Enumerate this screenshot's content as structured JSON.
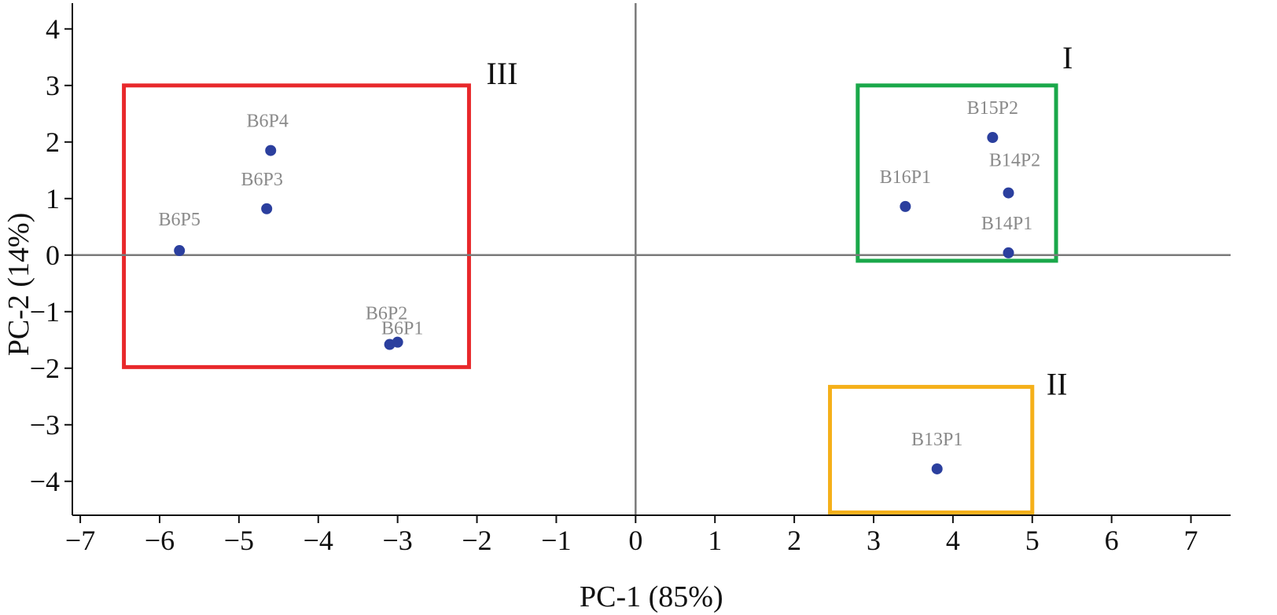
{
  "chart_data": {
    "type": "scatter",
    "title": "",
    "xlabel": "PC-1 (85%)",
    "ylabel": "PC-2 (14%)",
    "xlim": [
      -7.1,
      7.5
    ],
    "ylim": [
      -4.6,
      4.4
    ],
    "x_ticks": [
      -7,
      -6,
      -5,
      -4,
      -3,
      -2,
      -1,
      0,
      1,
      2,
      3,
      4,
      5,
      6,
      7
    ],
    "x_tick_labels": [
      "−7",
      "−6",
      "−5",
      "−4",
      "−3",
      "−2",
      "−1",
      "0",
      "1",
      "2",
      "3",
      "4",
      "5",
      "6",
      "7"
    ],
    "y_ticks": [
      4,
      3,
      2,
      1,
      0,
      -1,
      -2,
      -3,
      -4
    ],
    "y_tick_labels": [
      "4",
      "3",
      "2",
      "1",
      "0",
      "−1",
      "−2",
      "−3",
      "−4"
    ],
    "grid": false,
    "point_color": "#2b3f9e",
    "zero_line_color": "#7a7a7a",
    "points": [
      {
        "label": "B6P4",
        "x": -4.6,
        "y": 1.85
      },
      {
        "label": "B6P3",
        "x": -4.65,
        "y": 0.82
      },
      {
        "label": "B6P5",
        "x": -5.75,
        "y": 0.08
      },
      {
        "label": "B6P2",
        "x": -3.1,
        "y": -1.58
      },
      {
        "label": "B6P1",
        "x": -3.0,
        "y": -1.54
      },
      {
        "label": "B15P2",
        "x": 4.5,
        "y": 2.08
      },
      {
        "label": "B16P1",
        "x": 3.4,
        "y": 0.86
      },
      {
        "label": "B14P2",
        "x": 4.7,
        "y": 1.1
      },
      {
        "label": "B14P1",
        "x": 4.7,
        "y": 0.04
      },
      {
        "label": "B13P1",
        "x": 3.8,
        "y": -3.78
      }
    ],
    "regions": [
      {
        "label": "III",
        "color": "#e8282b",
        "x_min": -6.45,
        "x_max": -2.1,
        "y_min": -1.98,
        "y_max": 3.0
      },
      {
        "label": "I",
        "color": "#1aa84a",
        "x_min": 2.8,
        "x_max": 5.3,
        "y_min": -0.1,
        "y_max": 3.0
      },
      {
        "label": "II",
        "color": "#f5b01a",
        "x_min": 2.45,
        "x_max": 5.0,
        "y_min": -4.55,
        "y_max": -2.33
      }
    ]
  }
}
